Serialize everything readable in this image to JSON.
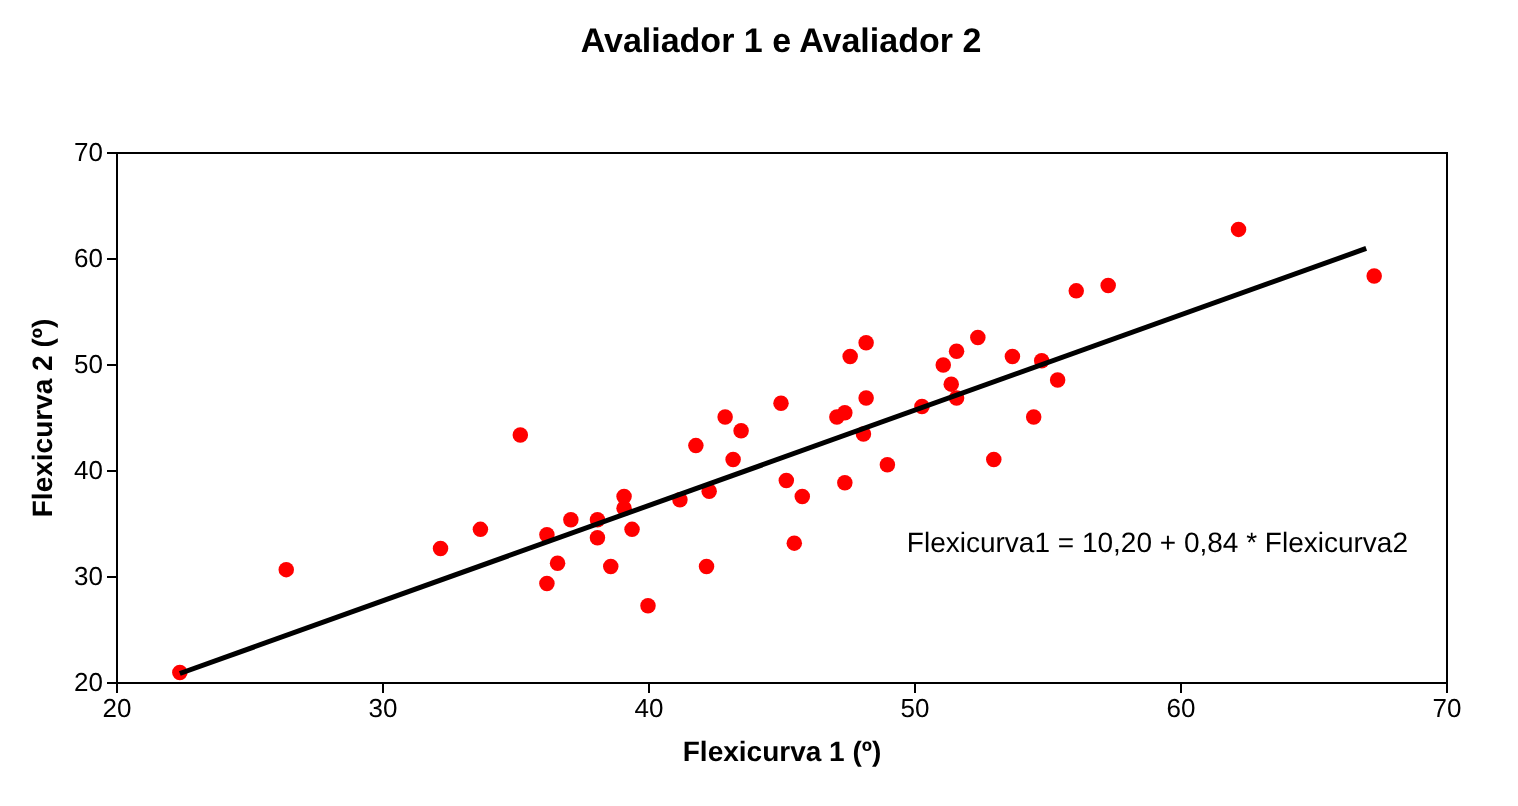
{
  "chart_data": {
    "type": "scatter",
    "title": "Avaliador 1 e Avaliador 2",
    "xlabel": "Flexicurva 1 (º)",
    "ylabel": "Flexicurva 2 (º)",
    "annotations": [
      "Flexicurva1 = 10,20 + 0,84 * Flexicurva2"
    ],
    "xlim": [
      20,
      70
    ],
    "xticks": [
      20,
      30,
      40,
      50,
      60,
      70
    ],
    "ylim": [
      20,
      70
    ],
    "yticks": [
      20,
      30,
      40,
      50,
      60,
      70
    ],
    "grid": false,
    "series": [
      {
        "marker": "circle",
        "color": "#ff0000",
        "x": [
          22.4,
          26.4,
          32.2,
          33.7,
          35.2,
          36.2,
          36.2,
          36.6,
          37.1,
          38.1,
          38.1,
          38.6,
          39.1,
          39.1,
          39.4,
          40.0,
          41.2,
          41.8,
          42.2,
          42.3,
          42.9,
          43.2,
          43.5,
          45.0,
          45.2,
          45.5,
          45.8,
          47.1,
          47.4,
          47.4,
          47.6,
          48.2,
          48.2,
          48.1,
          49.0,
          50.3,
          51.1,
          51.6,
          51.4,
          51.6,
          52.4,
          53.0,
          53.7,
          54.5,
          54.8,
          55.4,
          56.1,
          57.3,
          62.2,
          67.3
        ],
        "values": [
          20.9,
          30.6,
          32.6,
          34.4,
          43.3,
          33.9,
          29.3,
          31.2,
          35.3,
          35.3,
          33.6,
          30.9,
          37.5,
          36.4,
          34.4,
          27.2,
          37.2,
          42.3,
          30.9,
          38.0,
          45.0,
          41.0,
          43.7,
          46.3,
          39.0,
          33.1,
          37.5,
          45.0,
          45.4,
          38.8,
          50.7,
          52.0,
          46.8,
          43.4,
          40.5,
          46.0,
          49.9,
          51.2,
          48.1,
          46.8,
          52.5,
          41.0,
          50.7,
          45.0,
          50.3,
          48.5,
          56.9,
          57.4,
          62.7,
          58.3
        ]
      },
      {
        "type": "line",
        "color": "#000000",
        "x": [
          22.4,
          67.0
        ],
        "values": [
          20.8,
          60.9
        ]
      }
    ]
  }
}
